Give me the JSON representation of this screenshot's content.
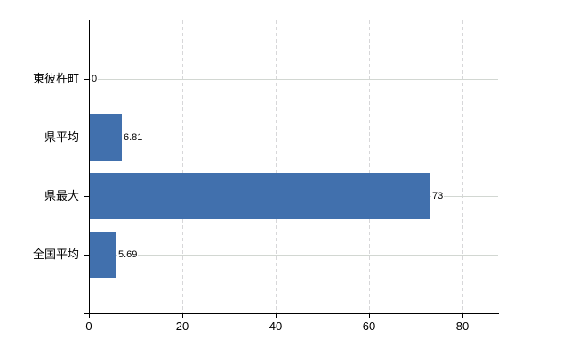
{
  "chart_data": {
    "type": "bar",
    "orientation": "horizontal",
    "title": "",
    "xlabel": "",
    "ylabel": "",
    "categories": [
      "東彼杵町",
      "県平均",
      "県最大",
      "全国平均"
    ],
    "values": [
      0,
      6.81,
      73,
      5.69
    ],
    "value_labels": [
      "0",
      "6.81",
      "73",
      "5.69"
    ],
    "x_ticks": [
      0,
      20,
      40,
      60,
      80
    ],
    "x_tick_labels": [
      "0",
      "20",
      "40",
      "60",
      "80"
    ],
    "xlim": [
      0,
      87.6
    ],
    "legend": false,
    "grid": {
      "vertical_style": "dashed",
      "horizontal_style": "solid",
      "plot_top_border": "dashed"
    },
    "colors": {
      "bar": "#4170ad",
      "axis": "#000000",
      "vertical_gridline": "#d7d7d9",
      "horizontal_gridline": "#d2d7d2",
      "text": "#000000",
      "background": "#ffffff"
    }
  }
}
